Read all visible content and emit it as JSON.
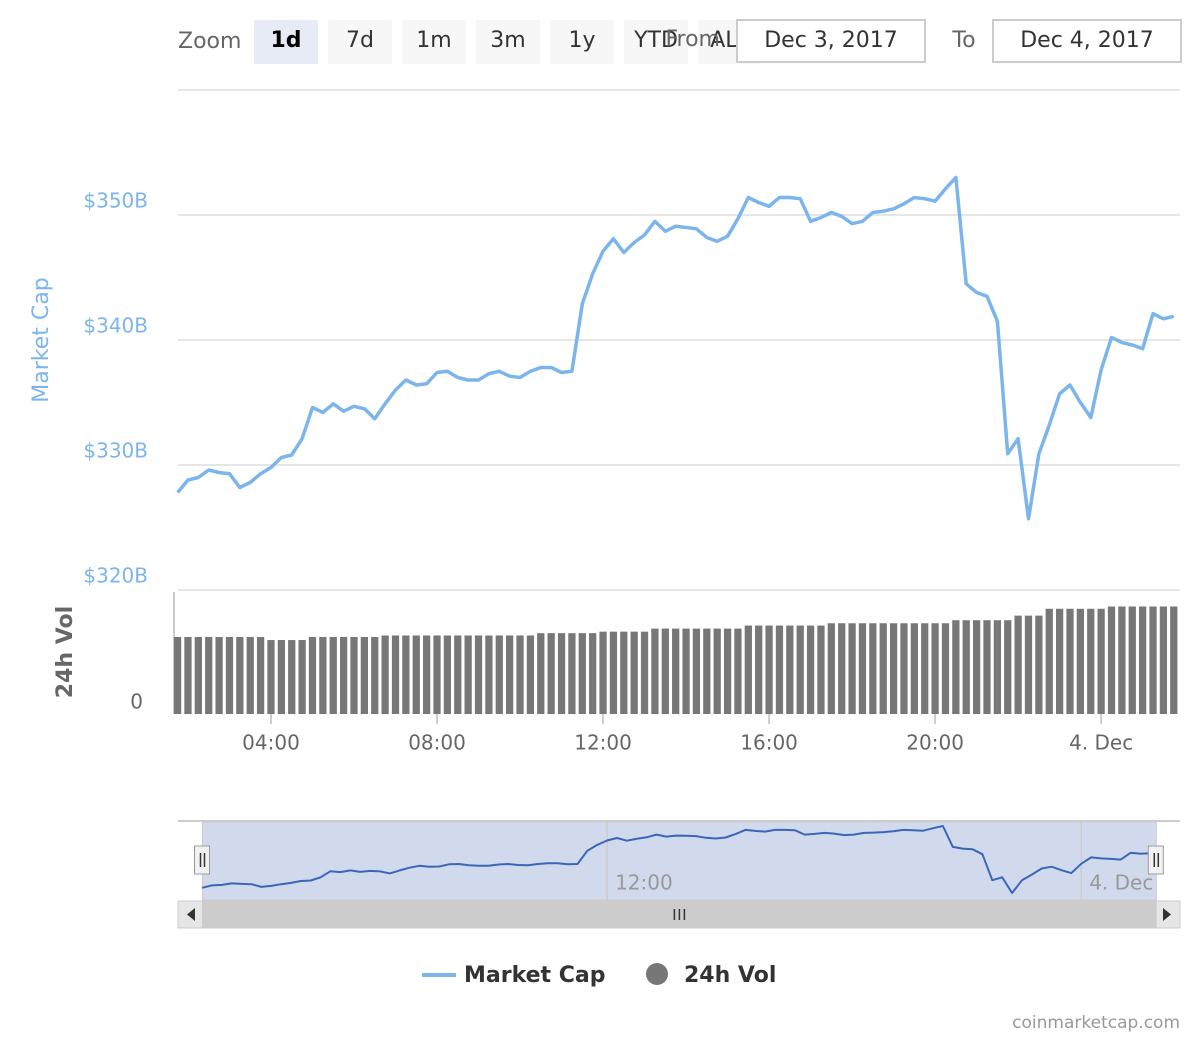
{
  "range_selector": {
    "zoom_label": "Zoom",
    "buttons": [
      "1d",
      "7d",
      "1m",
      "3m",
      "1y",
      "YTD",
      "ALL"
    ],
    "selected": 0,
    "from_label": "From",
    "from": "Dec 3, 2017",
    "to_label": "To",
    "to": "Dec 4, 2017"
  },
  "credits": "coinmarketcap.com",
  "chart_data": {
    "type": "line",
    "y_label": "Market Cap",
    "y2_label": "24h Vol",
    "x": [
      1.75,
      2.0,
      2.25,
      2.5,
      2.75,
      3.0,
      3.25,
      3.5,
      3.75,
      4.0,
      4.25,
      4.5,
      4.75,
      5.0,
      5.25,
      5.5,
      5.75,
      6.0,
      6.25,
      6.5,
      6.75,
      7.0,
      7.25,
      7.5,
      7.75,
      8.0,
      8.25,
      8.5,
      8.75,
      9.0,
      9.25,
      9.5,
      9.75,
      10.0,
      10.25,
      10.5,
      10.75,
      11.0,
      11.25,
      11.5,
      11.75,
      12.0,
      12.25,
      12.5,
      12.75,
      13.0,
      13.25,
      13.5,
      13.75,
      14.0,
      14.25,
      14.5,
      14.75,
      15.0,
      15.25,
      15.5,
      15.75,
      16.0,
      16.25,
      16.5,
      16.75,
      17.0,
      17.25,
      17.5,
      17.75,
      18.0,
      18.25,
      18.5,
      18.75,
      19.0,
      19.25,
      19.5,
      19.75,
      20.0,
      20.25,
      20.5,
      20.75,
      21.0,
      21.25,
      21.5,
      21.75,
      22.0,
      22.25,
      22.5,
      22.75,
      23.0,
      23.25,
      23.5,
      23.75,
      24.0,
      24.25,
      24.5,
      24.75,
      25.0,
      25.25,
      25.5,
      25.75
    ],
    "series": [
      {
        "name": "Market Cap",
        "color": "#7cb5ec",
        "values": [
          327.8,
          328.8,
          329.0,
          329.6,
          329.4,
          329.3,
          328.2,
          328.6,
          329.3,
          329.8,
          330.6,
          330.8,
          332.1,
          334.6,
          334.2,
          334.9,
          334.3,
          334.7,
          334.5,
          333.7,
          334.9,
          336.0,
          336.8,
          336.4,
          336.5,
          337.4,
          337.5,
          337.0,
          336.8,
          336.8,
          337.3,
          337.5,
          337.1,
          337.0,
          337.5,
          337.8,
          337.8,
          337.4,
          337.5,
          342.9,
          345.3,
          347.1,
          348.1,
          347.0,
          347.8,
          348.4,
          349.5,
          348.7,
          349.1,
          349.0,
          348.9,
          348.2,
          347.9,
          348.3,
          349.7,
          351.4,
          351.0,
          350.7,
          351.4,
          351.4,
          351.3,
          349.5,
          349.8,
          350.2,
          349.9,
          349.3,
          349.5,
          350.2,
          350.3,
          350.5,
          350.9,
          351.4,
          351.3,
          351.1,
          352.1,
          353.0,
          344.5,
          343.8,
          343.5,
          341.5,
          330.9,
          332.1,
          325.7,
          330.9,
          333.2,
          335.7,
          336.4,
          335.0,
          333.8,
          337.6,
          340.2,
          339.8,
          339.6,
          339.3,
          342.1,
          341.7,
          341.9
        ]
      },
      {
        "name": "24h Vol",
        "color": "#777777",
        "type": "column",
        "axis": "y2",
        "values": [
          10.1,
          10.1,
          10.1,
          10.1,
          10.1,
          10.1,
          10.1,
          10.1,
          10.1,
          9.7,
          9.7,
          9.7,
          9.7,
          10.1,
          10.1,
          10.1,
          10.1,
          10.1,
          10.1,
          10.1,
          10.3,
          10.3,
          10.3,
          10.3,
          10.3,
          10.3,
          10.3,
          10.3,
          10.3,
          10.3,
          10.3,
          10.3,
          10.3,
          10.3,
          10.3,
          10.6,
          10.6,
          10.6,
          10.6,
          10.6,
          10.6,
          10.8,
          10.8,
          10.8,
          10.8,
          10.8,
          11.2,
          11.2,
          11.2,
          11.2,
          11.2,
          11.2,
          11.2,
          11.2,
          11.2,
          11.6,
          11.6,
          11.6,
          11.6,
          11.6,
          11.6,
          11.6,
          11.6,
          11.9,
          11.9,
          11.9,
          11.9,
          11.9,
          11.9,
          11.9,
          11.9,
          11.9,
          11.9,
          11.9,
          11.9,
          12.3,
          12.3,
          12.3,
          12.3,
          12.3,
          12.3,
          12.9,
          12.9,
          12.9,
          13.8,
          13.8,
          13.8,
          13.8,
          13.8,
          13.8,
          14.1,
          14.1,
          14.1,
          14.1,
          14.1,
          14.1,
          14.1
        ]
      }
    ],
    "xlim": [
      1.76,
      25.9
    ],
    "xticks": [
      {
        "value": 4,
        "label": "04:00"
      },
      {
        "value": 8,
        "label": "08:00"
      },
      {
        "value": 12,
        "label": "12:00"
      },
      {
        "value": 16,
        "label": "16:00"
      },
      {
        "value": 20,
        "label": "20:00"
      },
      {
        "value": 24,
        "label": "4. Dec"
      }
    ],
    "ylim": [
      320,
      360
    ],
    "yticks": [
      {
        "value": 320,
        "label": "$320B"
      },
      {
        "value": 330,
        "label": "$330B"
      },
      {
        "value": 340,
        "label": "$340B"
      },
      {
        "value": 350,
        "label": "$350B"
      }
    ],
    "y2lim": [
      0,
      16
    ],
    "y2ticks": [
      0
    ],
    "navigator_xlim": [
      1.14,
      26.5
    ],
    "navigator_ticks": [
      2,
      5
    ],
    "grid": true
  }
}
